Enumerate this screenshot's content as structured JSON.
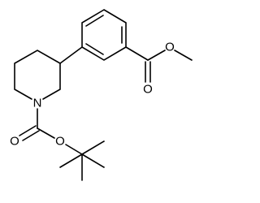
{
  "nodes": [
    {
      "label": "O"
    },
    {
      "label": "O"
    },
    {
      "label": "N"
    },
    {
      "label": "O"
    },
    {
      "label": "O"
    }
  ]
}
